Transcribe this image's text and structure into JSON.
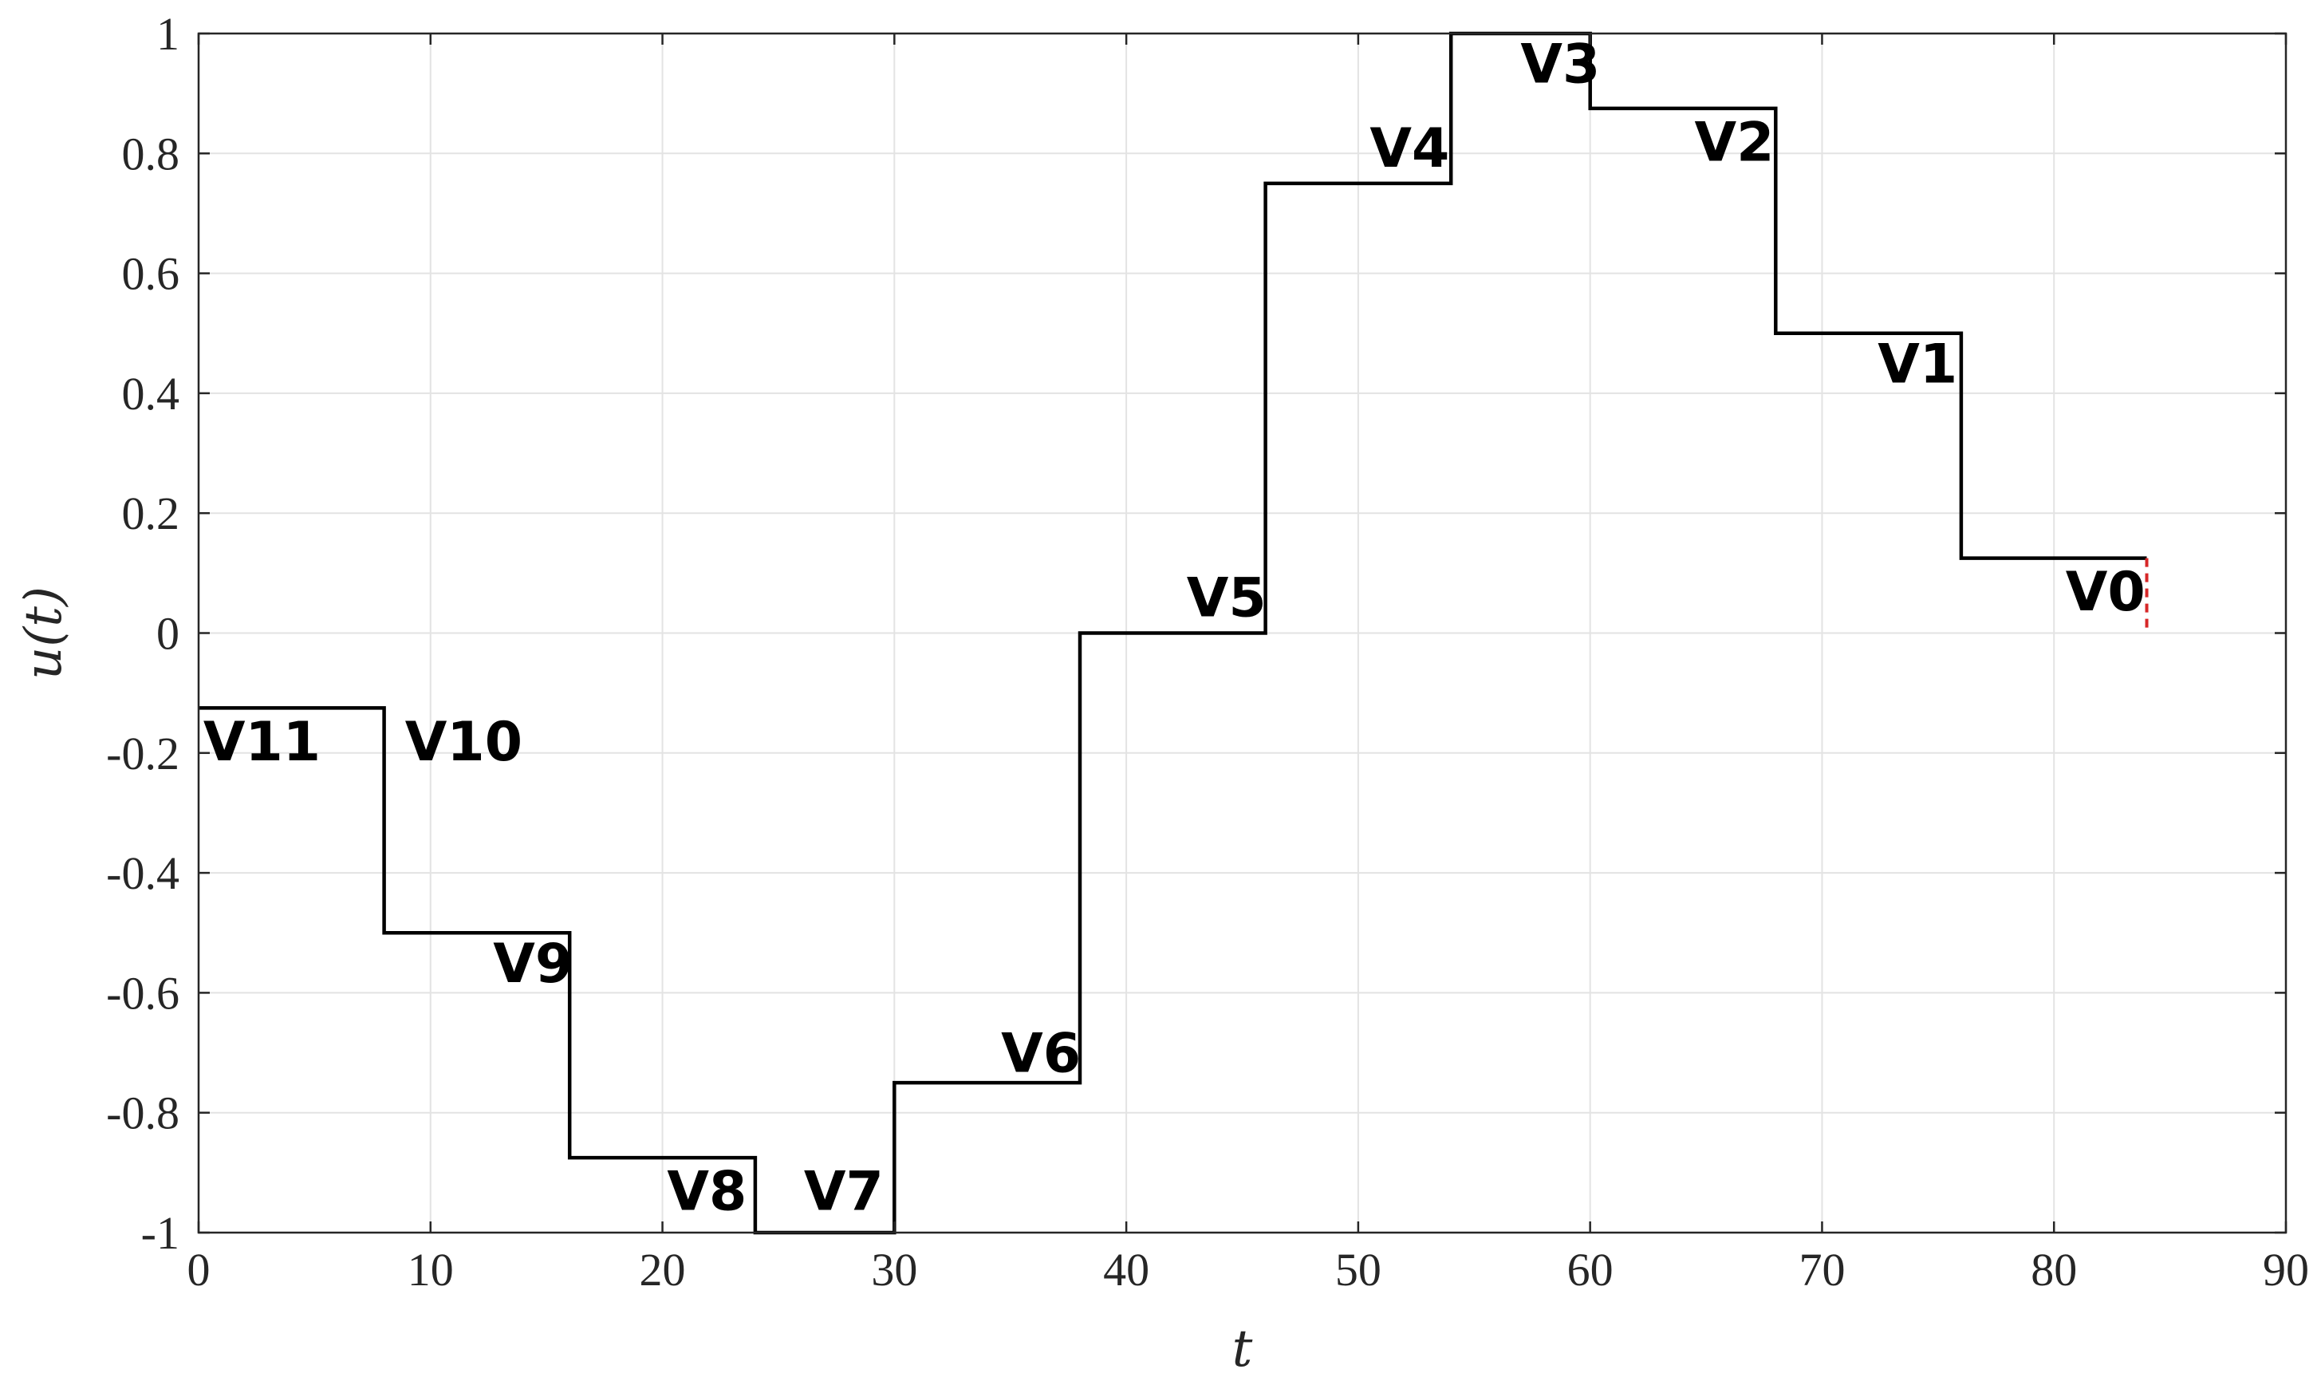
{
  "chart_data": {
    "type": "line",
    "xlabel": "t",
    "ylabel": "u(t)",
    "xlim": [
      0,
      90
    ],
    "ylim": [
      -1,
      1
    ],
    "grid": true,
    "x_ticks": [
      0,
      10,
      20,
      30,
      40,
      50,
      60,
      70,
      80,
      90
    ],
    "x_tick_labels": [
      "0",
      "10",
      "20",
      "30",
      "40",
      "50",
      "60",
      "70",
      "80",
      "90"
    ],
    "y_ticks": [
      -1,
      -0.8,
      -0.6,
      -0.4,
      -0.2,
      0,
      0.2,
      0.4,
      0.6,
      0.8,
      1
    ],
    "y_tick_labels": [
      "-1",
      "-0.8",
      "-0.6",
      "-0.4",
      "-0.2",
      "0",
      "0.2",
      "0.4",
      "0.6",
      "0.8",
      "1"
    ],
    "series": [
      {
        "color": "#000000",
        "style": "step",
        "x": [
          0,
          8,
          8,
          16,
          16,
          24,
          24,
          30,
          30,
          38,
          38,
          46,
          46,
          54,
          54,
          60,
          60,
          68,
          68,
          76,
          76,
          84
        ],
        "y": [
          -0.125,
          -0.125,
          -0.5,
          -0.5,
          -0.875,
          -0.875,
          -1,
          -1,
          -0.75,
          -0.75,
          0,
          0,
          0.75,
          0.75,
          1,
          1,
          0.875,
          0.875,
          0.5,
          0.5,
          0.125,
          0.125
        ]
      },
      {
        "color": "#d62728",
        "style": "dashed",
        "x": [
          84,
          84
        ],
        "y": [
          0.125,
          0
        ]
      }
    ],
    "annotations": [
      {
        "text": "V11",
        "x": 0.2,
        "y": -0.18
      },
      {
        "text": "V10",
        "x": 8.9,
        "y": -0.18
      },
      {
        "text": "V9",
        "x": 12.7,
        "y": -0.55
      },
      {
        "text": "V8",
        "x": 20.2,
        "y": -0.93
      },
      {
        "text": "V7",
        "x": 26.1,
        "y": -0.93
      },
      {
        "text": "V6",
        "x": 34.6,
        "y": -0.7
      },
      {
        "text": "V5",
        "x": 42.6,
        "y": 0.06
      },
      {
        "text": "V4",
        "x": 50.5,
        "y": 0.81
      },
      {
        "text": "V3",
        "x": 57.0,
        "y": 0.95
      },
      {
        "text": "V2",
        "x": 64.5,
        "y": 0.82
      },
      {
        "text": "V1",
        "x": 72.4,
        "y": 0.45
      },
      {
        "text": "V0",
        "x": 80.5,
        "y": 0.07
      }
    ]
  }
}
